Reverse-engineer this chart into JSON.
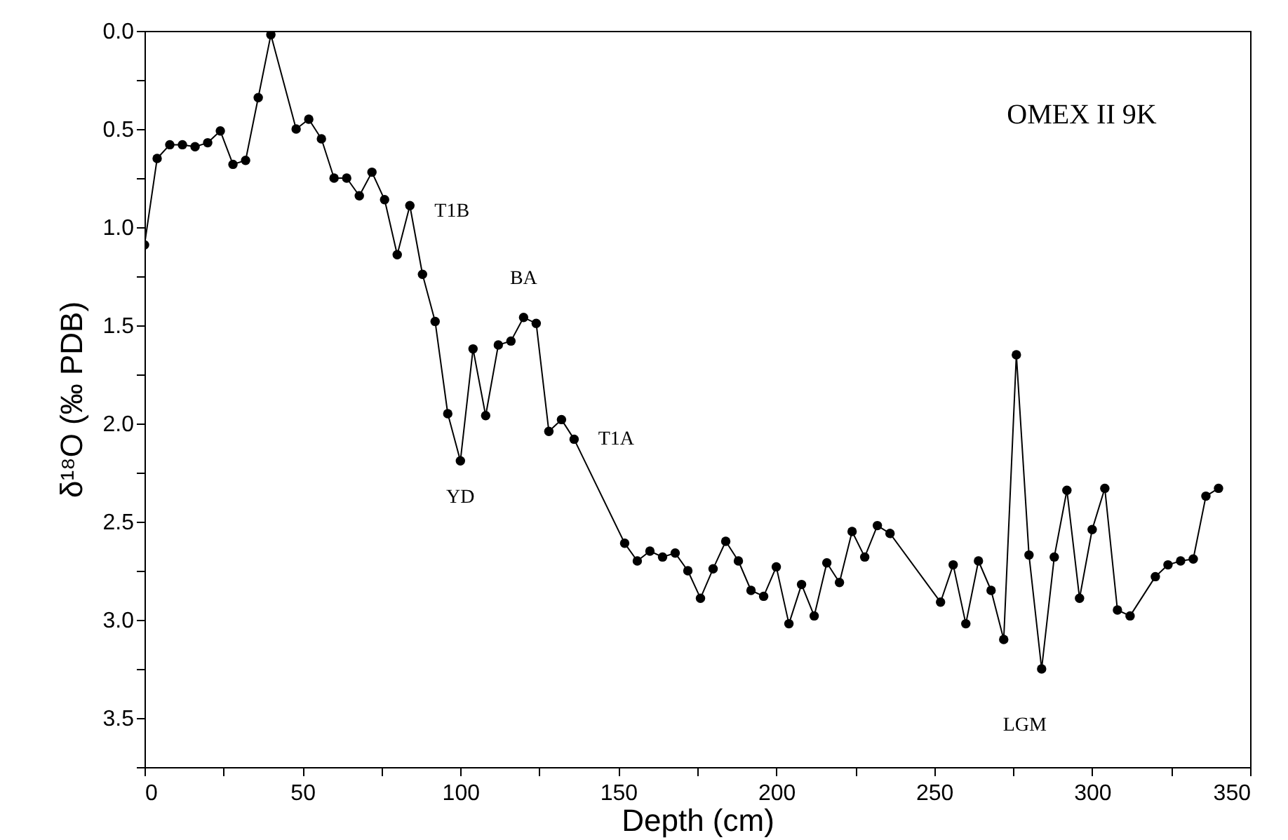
{
  "chart_data": {
    "type": "line",
    "xlabel": "Depth (cm)",
    "ylabel": "δ¹⁸O (‰ PDB)",
    "x": [
      0,
      4,
      8,
      12,
      16,
      20,
      24,
      28,
      32,
      36,
      40,
      48,
      52,
      56,
      60,
      64,
      68,
      72,
      76,
      80,
      84,
      88,
      92,
      96,
      100,
      104,
      108,
      112,
      116,
      120,
      124,
      128,
      132,
      136,
      152,
      156,
      160,
      164,
      168,
      172,
      176,
      180,
      184,
      188,
      192,
      196,
      200,
      204,
      208,
      212,
      216,
      220,
      224,
      228,
      232,
      236,
      252,
      256,
      260,
      264,
      268,
      272,
      276,
      280,
      284,
      288,
      292,
      296,
      300,
      304,
      308,
      312,
      320,
      324,
      328,
      332,
      336,
      340
    ],
    "series": [
      {
        "color": "#000000",
        "values": [
          1.09,
          0.65,
          0.58,
          0.58,
          0.59,
          0.57,
          0.51,
          0.68,
          0.66,
          0.34,
          0.02,
          0.5,
          0.45,
          0.55,
          0.75,
          0.75,
          0.84,
          0.72,
          0.86,
          1.14,
          0.89,
          1.24,
          1.48,
          1.95,
          2.19,
          1.62,
          1.96,
          1.6,
          1.58,
          1.46,
          1.49,
          2.04,
          1.98,
          2.08,
          2.61,
          2.7,
          2.65,
          2.68,
          2.66,
          2.75,
          2.89,
          2.74,
          2.6,
          2.7,
          2.85,
          2.88,
          2.73,
          3.02,
          2.82,
          2.98,
          2.71,
          2.81,
          2.55,
          2.68,
          2.52,
          2.56,
          2.91,
          2.72,
          3.02,
          2.7,
          2.85,
          3.1,
          1.65,
          2.67,
          3.25,
          2.68,
          2.34,
          2.89,
          2.54,
          2.33,
          2.95,
          2.98,
          2.78,
          2.72,
          2.7,
          2.69,
          2.37,
          2.33
        ]
      }
    ],
    "marker": "circle",
    "line_style": "solid",
    "grid": false,
    "xlim": [
      0,
      350
    ],
    "xticks": [
      0,
      {
        "value": 25,
        "label": null
      },
      50,
      {
        "value": 75,
        "label": null
      },
      100,
      {
        "value": 125,
        "label": null
      },
      150,
      {
        "value": 175,
        "label": null
      },
      200,
      {
        "value": 225,
        "label": null
      },
      250,
      {
        "value": 275,
        "label": null
      },
      300,
      {
        "value": 325,
        "label": null
      },
      350
    ],
    "ylim": [
      3.75,
      0
    ],
    "yticks": [
      {
        "value": 0,
        "label": "0.0"
      },
      {
        "value": 0.25,
        "label": null
      },
      {
        "value": 0.5,
        "label": "0.5"
      },
      {
        "value": 0.75,
        "label": null
      },
      {
        "value": 1,
        "label": "1.0"
      },
      {
        "value": 1.25,
        "label": null
      },
      {
        "value": 1.5,
        "label": "1.5"
      },
      {
        "value": 1.75,
        "label": null
      },
      {
        "value": 2,
        "label": "2.0"
      },
      {
        "value": 2.25,
        "label": null
      },
      {
        "value": 2.5,
        "label": "2.5"
      },
      {
        "value": 2.75,
        "label": null
      },
      {
        "value": 3,
        "label": "3.0"
      },
      {
        "value": 3.25,
        "label": null
      },
      {
        "value": 3.5,
        "label": "3.5"
      },
      {
        "value": 3.75,
        "label": null
      }
    ],
    "annotations": [
      "OMEX II 9K",
      {
        "text": "T1B",
        "x": 84,
        "y": 0.89
      },
      {
        "text": "BA",
        "x": 120,
        "y": 1.46
      },
      {
        "text": "YD",
        "x": 100,
        "y": 2.19
      },
      {
        "text": "T1A",
        "x": 136,
        "y": 2.08
      },
      {
        "text": "LGM",
        "x": 284,
        "y": 3.25
      }
    ]
  }
}
